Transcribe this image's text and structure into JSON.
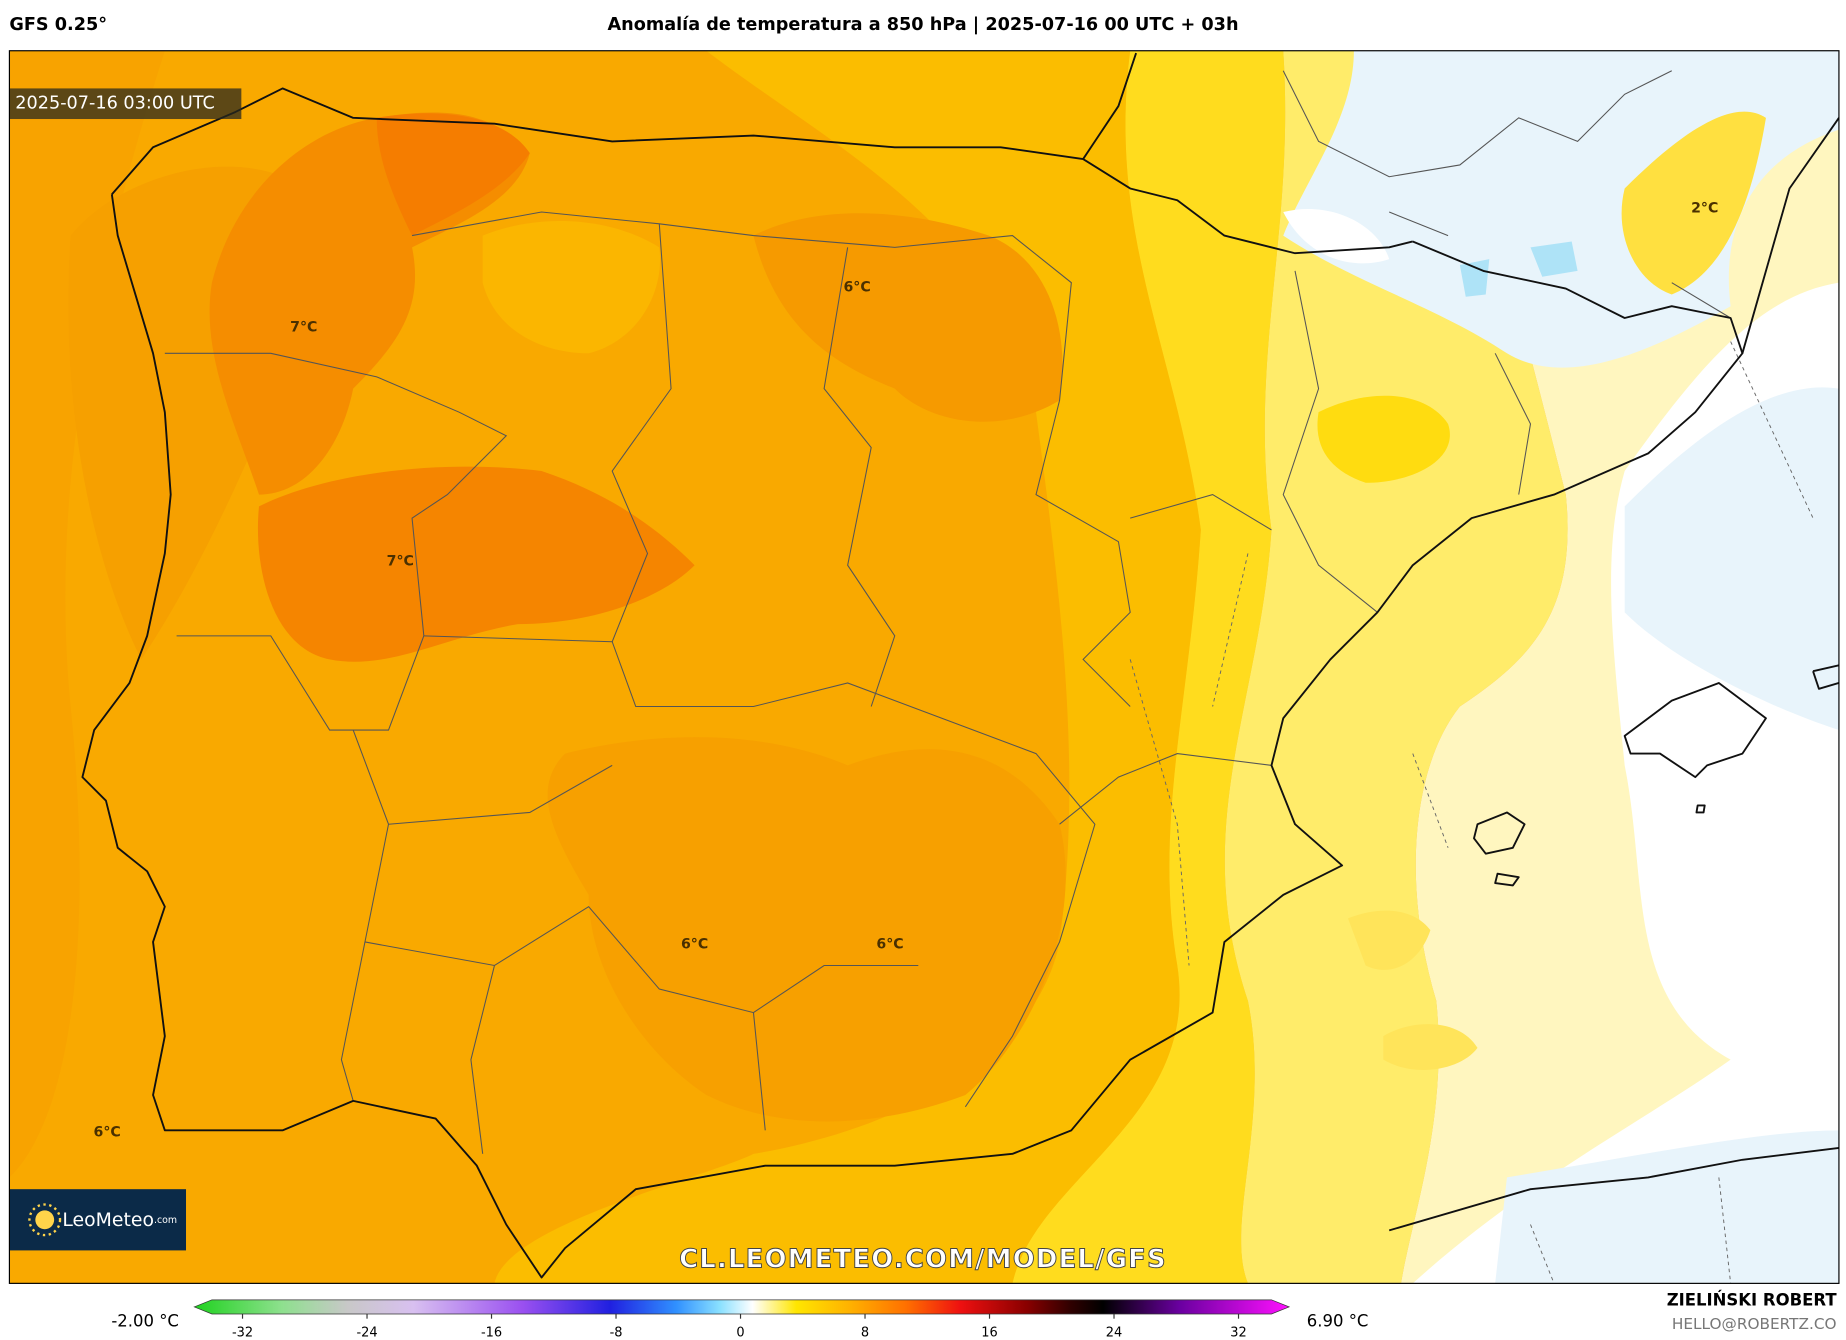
{
  "header": {
    "model": "GFS 0.25°",
    "title": "Anomalía de temperatura a 850 hPa | 2025-07-16 00 UTC + 03h"
  },
  "map": {
    "timestamp": "2025-07-16 03:00 UTC",
    "contour_labels": [
      "7°C",
      "7°C",
      "6°C",
      "6°C",
      "6°C",
      "6°C",
      "2°C"
    ],
    "watermark": "CL.LEOMETEO.COM/MODEL/GFS",
    "logo": {
      "name": "LeoMeteo",
      "suffix": ".com"
    }
  },
  "colorbar": {
    "min_label": "-2.00 °C",
    "max_label": "6.90 °C",
    "lim": [
      -32,
      32
    ],
    "ticks": [
      -32,
      -24,
      -16,
      -8,
      0,
      8,
      16,
      24,
      32
    ]
  },
  "footer": {
    "author": "ZIELIŃSKI ROBERT",
    "email": "HELLO@ROBERTZ.CO"
  }
}
